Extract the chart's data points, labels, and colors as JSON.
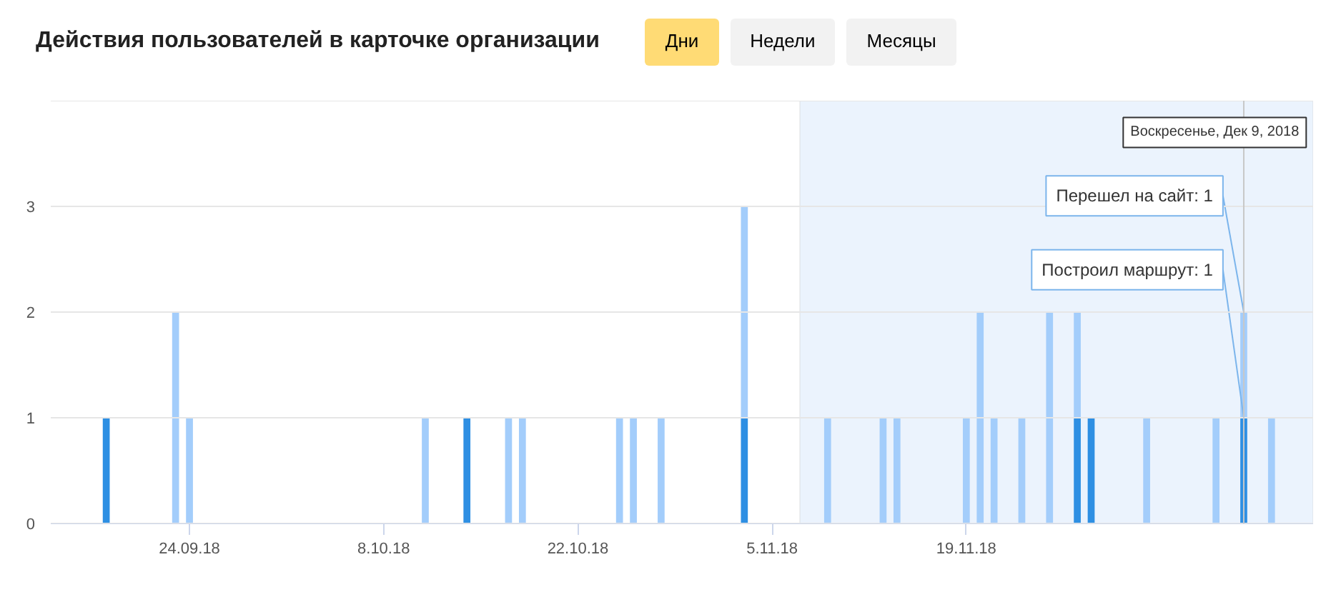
{
  "chart_data": {
    "type": "bar",
    "stacked": true,
    "title": "Действия пользователей в карточке организации",
    "annotations": [
      "Дни",
      "Недели",
      "Месяцы",
      {
        "text": "Перешел на сайт: 1",
        "x": "2018-12-09",
        "y": 2
      },
      {
        "text": "Построил маршрут: 1",
        "x": "2018-12-09",
        "y": 1
      }
    ],
    "x": [
      "2018-09-18",
      "2018-09-23",
      "2018-09-24",
      "2018-10-11",
      "2018-10-14",
      "2018-10-17",
      "2018-10-18",
      "2018-10-25",
      "2018-10-26",
      "2018-10-28",
      "2018-11-03",
      "2018-11-09",
      "2018-11-13",
      "2018-11-14",
      "2018-11-19",
      "2018-11-20",
      "2018-11-21",
      "2018-11-23",
      "2018-11-25",
      "2018-11-27",
      "2018-11-28",
      "2018-12-02",
      "2018-12-07",
      "2018-12-09",
      "2018-12-11"
    ],
    "series": [
      {
        "color": "#2e8fe3",
        "values": [
          1,
          null,
          null,
          null,
          1,
          null,
          null,
          null,
          null,
          null,
          1,
          null,
          null,
          null,
          null,
          null,
          null,
          null,
          null,
          1,
          1,
          null,
          null,
          1,
          null
        ]
      },
      {
        "color": "#a3cdfb",
        "values": [
          null,
          2,
          1,
          1,
          null,
          1,
          1,
          1,
          1,
          1,
          2,
          1,
          1,
          1,
          1,
          2,
          1,
          1,
          2,
          1,
          null,
          1,
          1,
          1,
          1
        ]
      }
    ],
    "xlim": [
      "2018-09-14",
      "2018-12-14"
    ],
    "xticks": [
      {
        "value": "2018-09-24",
        "label": "24.09.18"
      },
      {
        "value": "2018-10-08",
        "label": "8.10.18"
      },
      {
        "value": "2018-10-22",
        "label": "22.10.18"
      },
      {
        "value": "2018-11-05",
        "label": "5.11.18"
      },
      {
        "value": "2018-11-19",
        "label": "19.11.18"
      }
    ],
    "ylim": [
      0,
      4
    ],
    "yticks": [
      0,
      1,
      2,
      3,
      {
        "value": 4,
        "label": null
      }
    ],
    "grid": "y",
    "bands": [
      {
        "axis": "x",
        "from": "2018-11-07",
        "to": "2018-12-14",
        "label": null,
        "color": "#ebf3fd"
      }
    ],
    "ref_lines": [
      {
        "axis": "x",
        "value": "2018-12-09",
        "label": "Воскресенье, Дек 9, 2018",
        "color": "#c8c8c8"
      }
    ]
  }
}
